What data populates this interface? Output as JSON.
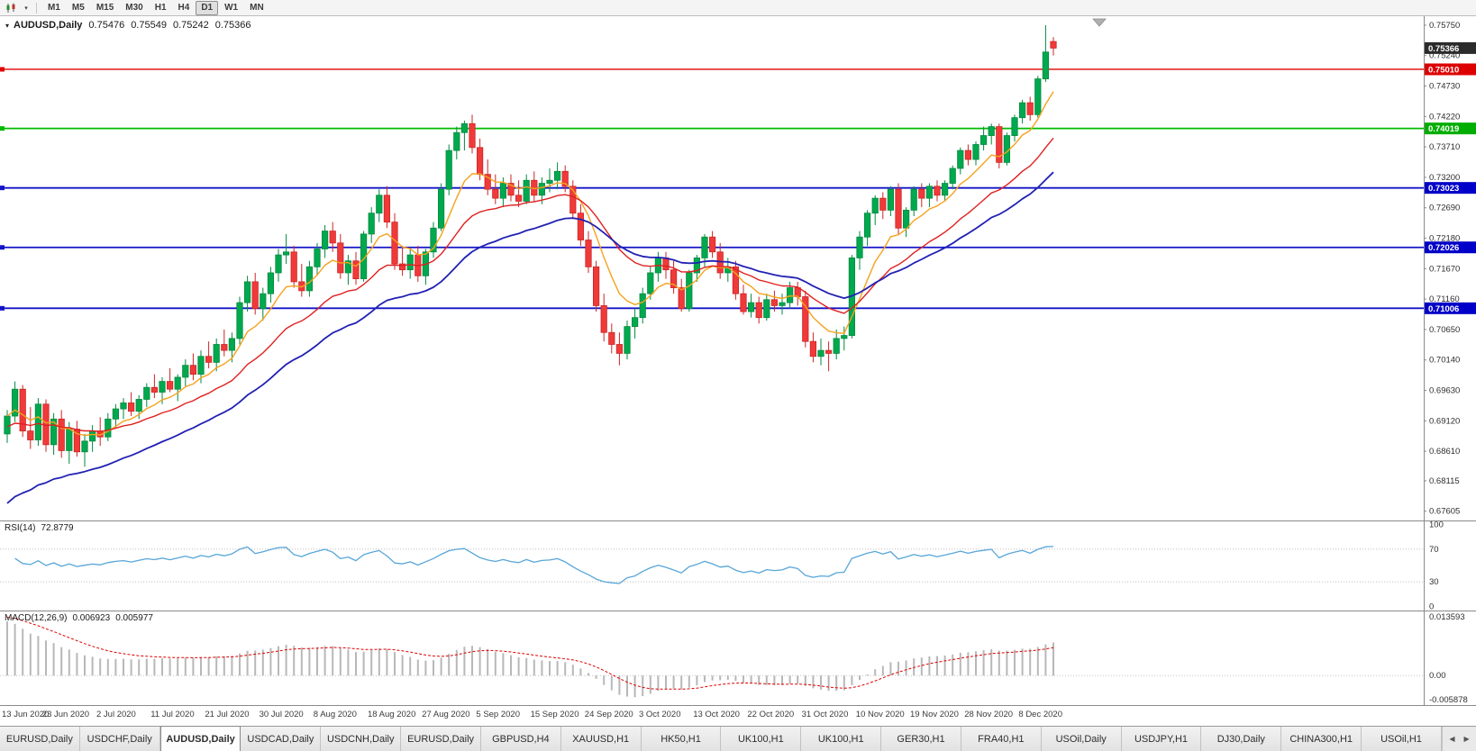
{
  "toolbar": {
    "timeframes": [
      "M1",
      "M5",
      "M15",
      "M30",
      "H1",
      "H4",
      "D1",
      "W1",
      "MN"
    ],
    "active_timeframe": "D1",
    "caret": "▾"
  },
  "chart": {
    "title": {
      "symbol": "AUDUSD,Daily",
      "open": "0.75476",
      "high": "0.75549",
      "low": "0.75242",
      "close": "0.75366"
    },
    "price_range": {
      "min": 0.6745,
      "max": 0.759
    },
    "axis_ticks": [
      "0.75750",
      "0.75240",
      "0.74730",
      "0.74220",
      "0.73710",
      "0.73200",
      "0.72690",
      "0.72180",
      "0.71670",
      "0.71160",
      "0.70650",
      "0.70140",
      "0.69630",
      "0.69120",
      "0.68610",
      "0.68115",
      "0.67605"
    ],
    "badges": [
      {
        "label": "0.75366",
        "value": 0.75366,
        "bg": "#2b2b2b",
        "name": "current-price-badge"
      },
      {
        "label": "0.75010",
        "value": 0.7501,
        "bg": "#dd0000",
        "name": "resistance-badge"
      },
      {
        "label": "0.74019",
        "value": 0.74019,
        "bg": "#00ad00",
        "name": "support-green-badge"
      },
      {
        "label": "0.73023",
        "value": 0.73023,
        "bg": "#0000c8",
        "name": "support-blue-badge-1"
      },
      {
        "label": "0.72026",
        "value": 0.72026,
        "bg": "#0000c8",
        "name": "support-blue-badge-2"
      },
      {
        "label": "0.71006",
        "value": 0.71006,
        "bg": "#0000c8",
        "name": "support-blue-badge-3"
      }
    ],
    "hlines": [
      {
        "value": 0.7501,
        "color": "#e00000",
        "width": 1.4
      },
      {
        "value": 0.74019,
        "color": "#00bb00",
        "width": 1.7
      },
      {
        "value": 0.73023,
        "color": "#1414c8",
        "width": 1.8
      },
      {
        "value": 0.72026,
        "color": "#1414c8",
        "width": 1.8
      },
      {
        "value": 0.71006,
        "color": "#1414c8",
        "width": 1.8
      }
    ],
    "colors": {
      "bull": "#00a84e",
      "bull_stroke": "#008a3e",
      "bear": "#f03a3a",
      "bear_stroke": "#cc2424"
    }
  },
  "chart_data": {
    "type": "candlestick",
    "symbol": "AUDUSD",
    "timeframe": "Daily",
    "dates": [
      "13 Jun 2020",
      "23 Jun 2020",
      "2 Jul 2020",
      "11 Jul 2020",
      "21 Jul 2020",
      "30 Jul 2020",
      "8 Aug 2020",
      "18 Aug 2020",
      "27 Aug 2020",
      "5 Sep 2020",
      "15 Sep 2020",
      "24 Sep 2020",
      "3 Oct 2020",
      "13 Oct 2020",
      "22 Oct 2020",
      "31 Oct 2020",
      "10 Nov 2020",
      "19 Nov 2020",
      "28 Nov 2020",
      "8 Dec 2020"
    ],
    "label_start": 1,
    "label_step": 7,
    "candles": [
      [
        0.689,
        0.693,
        0.6875,
        0.692
      ],
      [
        0.692,
        0.6978,
        0.691,
        0.6965
      ],
      [
        0.6965,
        0.6972,
        0.6885,
        0.6895
      ],
      [
        0.6895,
        0.6935,
        0.6865,
        0.688
      ],
      [
        0.688,
        0.695,
        0.687,
        0.694
      ],
      [
        0.694,
        0.6948,
        0.686,
        0.6872
      ],
      [
        0.6872,
        0.6925,
        0.6855,
        0.6915
      ],
      [
        0.6915,
        0.693,
        0.685,
        0.6862
      ],
      [
        0.6862,
        0.691,
        0.684,
        0.6898
      ],
      [
        0.6898,
        0.6912,
        0.6852,
        0.686
      ],
      [
        0.686,
        0.689,
        0.6835,
        0.6878
      ],
      [
        0.6878,
        0.6905,
        0.686,
        0.6895
      ],
      [
        0.6895,
        0.6918,
        0.687,
        0.6885
      ],
      [
        0.6885,
        0.6925,
        0.6878,
        0.6915
      ],
      [
        0.6915,
        0.694,
        0.69,
        0.6932
      ],
      [
        0.6932,
        0.695,
        0.6915,
        0.6942
      ],
      [
        0.6942,
        0.696,
        0.692,
        0.6928
      ],
      [
        0.6928,
        0.6955,
        0.6915,
        0.6948
      ],
      [
        0.6948,
        0.6975,
        0.6935,
        0.6968
      ],
      [
        0.6968,
        0.699,
        0.695,
        0.696
      ],
      [
        0.696,
        0.6985,
        0.694,
        0.6978
      ],
      [
        0.6978,
        0.7,
        0.696,
        0.6965
      ],
      [
        0.6965,
        0.699,
        0.6945,
        0.6985
      ],
      [
        0.6985,
        0.7015,
        0.697,
        0.7005
      ],
      [
        0.7005,
        0.7025,
        0.698,
        0.699
      ],
      [
        0.699,
        0.703,
        0.6975,
        0.702
      ],
      [
        0.702,
        0.7045,
        0.7,
        0.701
      ],
      [
        0.701,
        0.705,
        0.6995,
        0.704
      ],
      [
        0.704,
        0.7065,
        0.702,
        0.703
      ],
      [
        0.703,
        0.706,
        0.701,
        0.705
      ],
      [
        0.705,
        0.712,
        0.704,
        0.711
      ],
      [
        0.711,
        0.7155,
        0.7095,
        0.7145
      ],
      [
        0.7145,
        0.716,
        0.709,
        0.71
      ],
      [
        0.71,
        0.7135,
        0.708,
        0.7125
      ],
      [
        0.7125,
        0.717,
        0.711,
        0.716
      ],
      [
        0.716,
        0.72,
        0.7145,
        0.719
      ],
      [
        0.719,
        0.7225,
        0.7175,
        0.7195
      ],
      [
        0.7195,
        0.7205,
        0.7135,
        0.7145
      ],
      [
        0.7145,
        0.7175,
        0.712,
        0.713
      ],
      [
        0.713,
        0.718,
        0.712,
        0.717
      ],
      [
        0.717,
        0.721,
        0.7155,
        0.72
      ],
      [
        0.72,
        0.724,
        0.7185,
        0.723
      ],
      [
        0.723,
        0.7245,
        0.7195,
        0.721
      ],
      [
        0.721,
        0.7225,
        0.715,
        0.716
      ],
      [
        0.716,
        0.719,
        0.714,
        0.718
      ],
      [
        0.718,
        0.7195,
        0.714,
        0.715
      ],
      [
        0.715,
        0.723,
        0.7145,
        0.7225
      ],
      [
        0.7225,
        0.727,
        0.721,
        0.726
      ],
      [
        0.726,
        0.73,
        0.7245,
        0.729
      ],
      [
        0.729,
        0.7305,
        0.7235,
        0.7245
      ],
      [
        0.7245,
        0.726,
        0.7165,
        0.7175
      ],
      [
        0.7175,
        0.7205,
        0.7155,
        0.7165
      ],
      [
        0.7165,
        0.72,
        0.715,
        0.719
      ],
      [
        0.719,
        0.7205,
        0.7145,
        0.7155
      ],
      [
        0.7155,
        0.72,
        0.714,
        0.7195
      ],
      [
        0.7195,
        0.7245,
        0.7185,
        0.7235
      ],
      [
        0.7235,
        0.731,
        0.723,
        0.73
      ],
      [
        0.73,
        0.7375,
        0.729,
        0.7365
      ],
      [
        0.7365,
        0.7405,
        0.735,
        0.7395
      ],
      [
        0.7395,
        0.7415,
        0.7365,
        0.741
      ],
      [
        0.741,
        0.7425,
        0.736,
        0.737
      ],
      [
        0.737,
        0.7385,
        0.7315,
        0.7325
      ],
      [
        0.7325,
        0.735,
        0.729,
        0.73
      ],
      [
        0.73,
        0.7325,
        0.7275,
        0.7285
      ],
      [
        0.7285,
        0.732,
        0.727,
        0.731
      ],
      [
        0.731,
        0.7325,
        0.728,
        0.729
      ],
      [
        0.729,
        0.7315,
        0.727,
        0.728
      ],
      [
        0.728,
        0.7325,
        0.7275,
        0.7315
      ],
      [
        0.7315,
        0.733,
        0.728,
        0.729
      ],
      [
        0.729,
        0.732,
        0.7275,
        0.731
      ],
      [
        0.731,
        0.7335,
        0.7295,
        0.7315
      ],
      [
        0.7315,
        0.7345,
        0.73,
        0.733
      ],
      [
        0.733,
        0.734,
        0.7295,
        0.7305
      ],
      [
        0.7305,
        0.7315,
        0.725,
        0.726
      ],
      [
        0.726,
        0.7275,
        0.7205,
        0.7215
      ],
      [
        0.7215,
        0.723,
        0.716,
        0.717
      ],
      [
        0.717,
        0.718,
        0.7095,
        0.7105
      ],
      [
        0.7105,
        0.7125,
        0.7045,
        0.706
      ],
      [
        0.706,
        0.7075,
        0.7025,
        0.704
      ],
      [
        0.704,
        0.706,
        0.7005,
        0.7025
      ],
      [
        0.7025,
        0.708,
        0.7015,
        0.707
      ],
      [
        0.707,
        0.71,
        0.705,
        0.7085
      ],
      [
        0.7085,
        0.7135,
        0.7075,
        0.7125
      ],
      [
        0.7125,
        0.717,
        0.7115,
        0.716
      ],
      [
        0.716,
        0.7195,
        0.7145,
        0.7185
      ],
      [
        0.7185,
        0.7195,
        0.715,
        0.7165
      ],
      [
        0.7165,
        0.718,
        0.7125,
        0.7135
      ],
      [
        0.7135,
        0.715,
        0.7095,
        0.71
      ],
      [
        0.71,
        0.7165,
        0.7095,
        0.716
      ],
      [
        0.716,
        0.719,
        0.7145,
        0.7185
      ],
      [
        0.7185,
        0.7225,
        0.717,
        0.722
      ],
      [
        0.722,
        0.723,
        0.7185,
        0.7195
      ],
      [
        0.7195,
        0.721,
        0.715,
        0.716
      ],
      [
        0.716,
        0.7185,
        0.7145,
        0.717
      ],
      [
        0.717,
        0.718,
        0.7115,
        0.7125
      ],
      [
        0.7125,
        0.714,
        0.709,
        0.7095
      ],
      [
        0.7095,
        0.7125,
        0.7085,
        0.711
      ],
      [
        0.711,
        0.712,
        0.7075,
        0.7085
      ],
      [
        0.7085,
        0.7125,
        0.708,
        0.7115
      ],
      [
        0.7115,
        0.713,
        0.7095,
        0.7105
      ],
      [
        0.7105,
        0.7125,
        0.709,
        0.711
      ],
      [
        0.711,
        0.7145,
        0.71,
        0.7135
      ],
      [
        0.7135,
        0.7145,
        0.7105,
        0.712
      ],
      [
        0.712,
        0.713,
        0.7035,
        0.7045
      ],
      [
        0.7045,
        0.706,
        0.701,
        0.702
      ],
      [
        0.702,
        0.705,
        0.7005,
        0.703
      ],
      [
        0.703,
        0.7045,
        0.6995,
        0.7025
      ],
      [
        0.7025,
        0.7065,
        0.7015,
        0.705
      ],
      [
        0.705,
        0.707,
        0.703,
        0.7055
      ],
      [
        0.7055,
        0.719,
        0.705,
        0.7185
      ],
      [
        0.7185,
        0.723,
        0.7165,
        0.722
      ],
      [
        0.722,
        0.7265,
        0.7205,
        0.726
      ],
      [
        0.726,
        0.729,
        0.724,
        0.7285
      ],
      [
        0.7285,
        0.7295,
        0.725,
        0.7265
      ],
      [
        0.7265,
        0.7305,
        0.7255,
        0.73
      ],
      [
        0.73,
        0.731,
        0.7225,
        0.7235
      ],
      [
        0.7235,
        0.727,
        0.722,
        0.7265
      ],
      [
        0.7265,
        0.7305,
        0.7255,
        0.73
      ],
      [
        0.73,
        0.731,
        0.727,
        0.7285
      ],
      [
        0.7285,
        0.731,
        0.727,
        0.7305
      ],
      [
        0.7305,
        0.7315,
        0.728,
        0.729
      ],
      [
        0.729,
        0.7315,
        0.728,
        0.731
      ],
      [
        0.731,
        0.734,
        0.73,
        0.7335
      ],
      [
        0.7335,
        0.737,
        0.7325,
        0.7365
      ],
      [
        0.7365,
        0.7375,
        0.734,
        0.735
      ],
      [
        0.735,
        0.738,
        0.734,
        0.7375
      ],
      [
        0.7375,
        0.7405,
        0.7365,
        0.739
      ],
      [
        0.739,
        0.741,
        0.7375,
        0.7405
      ],
      [
        0.7405,
        0.741,
        0.7335,
        0.7345
      ],
      [
        0.7345,
        0.7395,
        0.734,
        0.739
      ],
      [
        0.739,
        0.7425,
        0.738,
        0.742
      ],
      [
        0.742,
        0.745,
        0.741,
        0.7445
      ],
      [
        0.7445,
        0.7455,
        0.7415,
        0.7425
      ],
      [
        0.7425,
        0.749,
        0.742,
        0.7485
      ],
      [
        0.7485,
        0.7575,
        0.748,
        0.753
      ],
      [
        0.75476,
        0.75549,
        0.75242,
        0.75366
      ]
    ],
    "moving_averages": [
      {
        "name": "fast-ma",
        "color": "#f5a21d",
        "period": 8,
        "seed_offset": 0.0,
        "width": 1.4
      },
      {
        "name": "mid-ma",
        "color": "#e02020",
        "period": 20,
        "seed_offset": -0.002,
        "width": 1.4
      },
      {
        "name": "slow-ma",
        "color": "#2121b4",
        "period": 34,
        "seed_offset": -0.0155,
        "width": 1.8
      }
    ]
  },
  "rsi": {
    "label": "RSI(14)",
    "value": "72.8779",
    "axis": [
      "100",
      "70",
      "30",
      "0"
    ],
    "levels": [
      70,
      30
    ],
    "line_color": "#58a6d8",
    "range": {
      "min": -5,
      "max": 105
    }
  },
  "macd": {
    "label": "MACD(12,26,9)",
    "value_main": "0.006923",
    "value_signal": "0.005977",
    "axis": [
      "0.013593",
      "0.00",
      "-0.005878"
    ],
    "range": {
      "min": -0.0068,
      "max": 0.015
    },
    "bar_color": "#b8b8b8",
    "signal_color": "#dd0000"
  },
  "tabs": {
    "items": [
      "EURUSD,Daily",
      "USDCHF,Daily",
      "AUDUSD,Daily",
      "USDCAD,Daily",
      "USDCNH,Daily",
      "EURUSD,Daily",
      "GBPUSD,H4",
      "XAUUSD,H1",
      "HK50,H1",
      "UK100,H1",
      "UK100,H1",
      "GER30,H1",
      "FRA40,H1",
      "USOil,Daily",
      "USDJPY,H1",
      "DJ30,Daily",
      "CHINA300,H1",
      "USOil,H1"
    ],
    "active_index": 2,
    "left_arrow": "◀",
    "right_arrow": "▶"
  }
}
